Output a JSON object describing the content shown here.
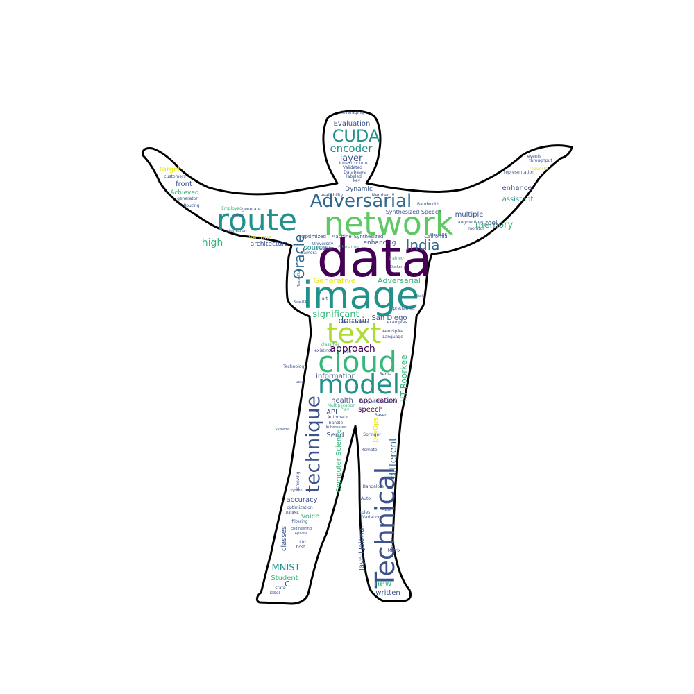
{
  "palette": {
    "dark_purple": "#440154",
    "indigo": "#3b528b",
    "slate_blue": "#31688e",
    "teal": "#21918c",
    "sea_green": "#35b779",
    "light_green": "#5ec962",
    "lime": "#addc30",
    "yellow": "#e5e419",
    "outline": "#000000",
    "background": "#ffffff"
  },
  "word_cloud": {
    "words": [
      {
        "text": "data",
        "color": "dark_purple"
      },
      {
        "text": "image",
        "color": "teal"
      },
      {
        "text": "network",
        "color": "light_green"
      },
      {
        "text": "route",
        "color": "teal"
      },
      {
        "text": "Technical",
        "color": "indigo"
      },
      {
        "text": "cloud",
        "color": "sea_green"
      },
      {
        "text": "model",
        "color": "teal"
      },
      {
        "text": "text",
        "color": "lime"
      },
      {
        "text": "technique",
        "color": "indigo"
      },
      {
        "text": "Adversarial",
        "color": "slate_blue"
      },
      {
        "text": "CUDA",
        "color": "teal"
      },
      {
        "text": "India",
        "color": "slate_blue"
      },
      {
        "text": "Oracle",
        "color": "slate_blue"
      },
      {
        "text": "encoder",
        "color": "teal"
      },
      {
        "text": "layer",
        "color": "indigo"
      },
      {
        "text": "high",
        "color": "sea_green"
      },
      {
        "text": "memory",
        "color": "sea_green"
      },
      {
        "text": "approach",
        "color": "dark_purple"
      },
      {
        "text": "significant",
        "color": "sea_green"
      },
      {
        "text": "different",
        "color": "slate_blue"
      },
      {
        "text": "MNIST",
        "color": "teal"
      },
      {
        "text": "Evaluation",
        "color": "indigo"
      },
      {
        "text": "Generative",
        "color": "yellow"
      },
      {
        "text": "Adversarial",
        "color": "sea_green"
      },
      {
        "text": "domain",
        "color": "indigo"
      },
      {
        "text": "San Diego",
        "color": "indigo"
      },
      {
        "text": "IIT Roorkee",
        "color": "sea_green"
      },
      {
        "text": "application",
        "color": "dark_purple"
      },
      {
        "text": "speech",
        "color": "dark_purple"
      },
      {
        "text": "health",
        "color": "indigo"
      },
      {
        "text": "API",
        "color": "indigo"
      },
      {
        "text": "Send",
        "color": "indigo"
      },
      {
        "text": "information",
        "color": "indigo"
      },
      {
        "text": "Computer Science",
        "color": "sea_green"
      },
      {
        "text": "DevOps",
        "color": "yellow"
      },
      {
        "text": "new",
        "color": "sea_green"
      },
      {
        "text": "written",
        "color": "indigo"
      },
      {
        "text": "Jaynil Jaiswal",
        "color": "indigo"
      },
      {
        "text": "Student",
        "color": "sea_green"
      },
      {
        "text": "Voice",
        "color": "sea_green"
      },
      {
        "text": "accuracy",
        "color": "indigo"
      },
      {
        "text": "classes",
        "color": "indigo"
      },
      {
        "text": "enhance",
        "color": "indigo"
      },
      {
        "text": "assistant",
        "color": "teal"
      },
      {
        "text": "multiple",
        "color": "indigo"
      },
      {
        "text": "tool",
        "color": "indigo"
      },
      {
        "text": "target",
        "color": "yellow"
      },
      {
        "text": "front",
        "color": "indigo"
      },
      {
        "text": "Achieved",
        "color": "sea_green"
      },
      {
        "text": "Dynamic",
        "color": "indigo"
      },
      {
        "text": "source",
        "color": "teal"
      },
      {
        "text": "various",
        "color": "yellow"
      },
      {
        "text": "architecture",
        "color": "indigo"
      },
      {
        "text": "enhancing",
        "color": "indigo"
      },
      {
        "text": "Synthesized Speech",
        "color": "indigo"
      },
      {
        "text": "leveraging",
        "color": "indigo"
      },
      {
        "text": "Infrastructure",
        "color": "indigo"
      },
      {
        "text": "Validated",
        "color": "indigo"
      },
      {
        "text": "Databases",
        "color": "indigo"
      },
      {
        "text": "labeled",
        "color": "indigo"
      },
      {
        "text": "key",
        "color": "indigo"
      },
      {
        "text": "customers",
        "color": "indigo"
      },
      {
        "text": "generator",
        "color": "indigo"
      },
      {
        "text": "Routing",
        "color": "indigo"
      },
      {
        "text": "Employed",
        "color": "sea_green"
      },
      {
        "text": "generate",
        "color": "indigo"
      },
      {
        "text": "availability",
        "color": "indigo"
      },
      {
        "text": "Member",
        "color": "indigo"
      },
      {
        "text": "Bandwidth",
        "color": "indigo"
      },
      {
        "text": "augmenting",
        "color": "indigo"
      },
      {
        "text": "California",
        "color": "indigo"
      },
      {
        "text": "Optimized",
        "color": "indigo"
      },
      {
        "text": "Machine",
        "color": "indigo"
      },
      {
        "text": "Synthesized",
        "color": "indigo"
      },
      {
        "text": "University",
        "color": "indigo"
      },
      {
        "text": "notable",
        "color": "indigo"
      },
      {
        "text": "Education",
        "color": "sea_green"
      },
      {
        "text": "Camera",
        "color": "indigo"
      },
      {
        "text": "integrated",
        "color": "indigo"
      },
      {
        "text": "trained",
        "color": "sea_green"
      },
      {
        "text": "pretrained",
        "color": "indigo"
      },
      {
        "text": "Autoencoder",
        "color": "indigo"
      },
      {
        "text": "examples",
        "color": "indigo"
      },
      {
        "text": "AeroSpike",
        "color": "indigo"
      },
      {
        "text": "Language",
        "color": "indigo"
      },
      {
        "text": "classifier",
        "color": "sea_green"
      },
      {
        "text": "existing",
        "color": "indigo"
      },
      {
        "text": "use",
        "color": "indigo"
      },
      {
        "text": "Redis",
        "color": "indigo"
      },
      {
        "text": "Technology",
        "color": "indigo"
      },
      {
        "text": "Translation",
        "color": "indigo"
      },
      {
        "text": "Multiplication",
        "color": "sea_green"
      },
      {
        "text": "Play",
        "color": "sea_green"
      },
      {
        "text": "Learn",
        "color": "indigo"
      },
      {
        "text": "Based",
        "color": "indigo"
      },
      {
        "text": "Automatic",
        "color": "indigo"
      },
      {
        "text": "handle",
        "color": "indigo"
      },
      {
        "text": "Springer",
        "color": "indigo"
      },
      {
        "text": "Kubernetes",
        "color": "indigo"
      },
      {
        "text": "Remote",
        "color": "indigo"
      },
      {
        "text": "Bangalore",
        "color": "indigo"
      },
      {
        "text": "Auto",
        "color": "indigo"
      },
      {
        "text": "rules",
        "color": "indigo"
      },
      {
        "text": "Variational",
        "color": "indigo"
      },
      {
        "text": "Fleet",
        "color": "indigo"
      },
      {
        "text": "optimization",
        "color": "indigo"
      },
      {
        "text": "filtering",
        "color": "indigo"
      },
      {
        "text": "Ltd",
        "color": "indigo"
      },
      {
        "text": "host",
        "color": "indigo"
      },
      {
        "text": "Matrix",
        "color": "indigo"
      },
      {
        "text": "state",
        "color": "indigo"
      },
      {
        "text": "label",
        "color": "indigo"
      },
      {
        "text": "events",
        "color": "indigo"
      },
      {
        "text": "throughput",
        "color": "indigo"
      },
      {
        "text": "requests",
        "color": "yellow"
      },
      {
        "text": "representation",
        "color": "indigo"
      },
      {
        "text": "monitor",
        "color": "indigo"
      },
      {
        "text": "Tensorflow",
        "color": "indigo"
      },
      {
        "text": "Flask",
        "color": "indigo"
      },
      {
        "text": "Docker",
        "color": "indigo"
      },
      {
        "text": "Spark",
        "color": "indigo"
      },
      {
        "text": "art",
        "color": "indigo"
      },
      {
        "text": "ReactJS",
        "color": "indigo"
      },
      {
        "text": "MongoDB",
        "color": "indigo"
      },
      {
        "text": "Apache",
        "color": "indigo"
      },
      {
        "text": "efficient",
        "color": "indigo"
      },
      {
        "text": "achieving",
        "color": "indigo"
      },
      {
        "text": "Engineering",
        "color": "indigo"
      },
      {
        "text": "ucsd",
        "color": "indigo"
      },
      {
        "text": "Python",
        "color": "indigo"
      },
      {
        "text": "Systems",
        "color": "indigo"
      },
      {
        "text": "DataML",
        "color": "indigo"
      },
      {
        "text": "C",
        "color": "indigo"
      }
    ]
  }
}
